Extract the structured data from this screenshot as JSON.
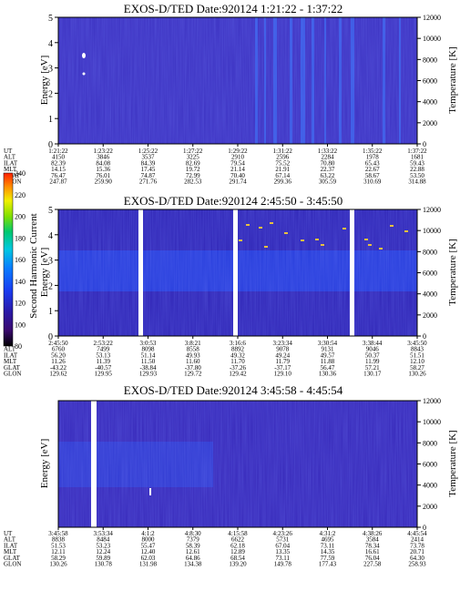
{
  "chart_data": [
    {
      "type": "heatmap",
      "title": "EXOS-D/TED   Date:920124   1:21:22 - 1:37:22",
      "ylabel": "Energy [eV]",
      "ylabel_right": "Temperature [K]",
      "ylim": [
        0,
        5
      ],
      "y_ticks": [
        "0",
        "1",
        "2",
        "3",
        "4",
        "5"
      ],
      "ylim_right": [
        0,
        12000
      ],
      "y_ticks_right": [
        "0",
        "2000",
        "4000",
        "6000",
        "8000",
        "10000",
        "12000"
      ],
      "ephemeris_labels": [
        "UT",
        "ALT",
        "ILAT",
        "MLT",
        "GLAT",
        "GLON"
      ],
      "ephemeris_columns": [
        [
          "1:21:22",
          "4150",
          "82.39",
          "14.15",
          "76.47",
          "247.87"
        ],
        [
          "1:23:22",
          "3846",
          "84.08",
          "15.36",
          "76.01",
          "259.90"
        ],
        [
          "1:25:22",
          "3537",
          "84.39",
          "17.45",
          "74.87",
          "271.76"
        ],
        [
          "1:27:22",
          "3225",
          "82.69",
          "19.72",
          "72.99",
          "282.53"
        ],
        [
          "1:29:22",
          "2910",
          "79.54",
          "21.14",
          "70.40",
          "291.74"
        ],
        [
          "1:31:22",
          "2596",
          "75.52",
          "21.91",
          "67.14",
          "299.36"
        ],
        [
          "1:33:22",
          "2284",
          "70.80",
          "22.37",
          "63.22",
          "305.59"
        ],
        [
          "1:35:22",
          "1978",
          "65.43",
          "22.67",
          "58.67",
          "310.69"
        ],
        [
          "1:37:22",
          "1681",
          "59.43",
          "22.88",
          "53.50",
          "314.88"
        ]
      ]
    },
    {
      "type": "heatmap",
      "title": "EXOS-D/TED   Date:920124   2:45:50 - 3:45:50",
      "ylabel": "Energy [eV]",
      "ylabel_right": "Temperature [K]",
      "ylim": [
        0,
        5
      ],
      "y_ticks": [
        "0",
        "1",
        "2",
        "3",
        "4",
        "5"
      ],
      "ylim_right": [
        0,
        12000
      ],
      "y_ticks_right": [
        "0",
        "2000",
        "4000",
        "6000",
        "8000",
        "10000",
        "12000"
      ],
      "ephemeris_labels": [
        "UT",
        "ALT",
        "ILAT",
        "MLT",
        "GLAT",
        "GLON"
      ],
      "ephemeris_columns": [
        [
          "2:45:50",
          "6760",
          "56.20",
          "11.26",
          "-43.22",
          "129.62"
        ],
        [
          "2:53:22",
          "7499",
          "53.13",
          "11.39",
          "-40.57",
          "129.95"
        ],
        [
          "3:0:53",
          "8098",
          "51.14",
          "11.50",
          "-38.84",
          "129.93"
        ],
        [
          "3:8:21",
          "8558",
          "49.93",
          "11.60",
          "-37.80",
          "129.72"
        ],
        [
          "3:16:6",
          "8892",
          "49.32",
          "11.70",
          "-37.26",
          "129.42"
        ],
        [
          "3:23:34",
          "9078",
          "49.24",
          "11.79",
          "-37.17",
          "129.10"
        ],
        [
          "3:30:54",
          "9131",
          "49.57",
          "11.88",
          "56.47",
          "130.36"
        ],
        [
          "3:38:44",
          "9046",
          "50.37",
          "11.99",
          "57.21",
          "130.17"
        ],
        [
          "3:45:50",
          "8843",
          "51.51",
          "12.10",
          "58.27",
          "130.26"
        ]
      ]
    },
    {
      "type": "heatmap",
      "title": "EXOS-D/TED   Date:920124   3:45:58 - 4:45:54",
      "ylabel": "Energy [eV]",
      "ylabel_right": "Temperature [K]",
      "ylim": [
        0,
        12000
      ],
      "y_ticks_right": [
        "0",
        "2000",
        "4000",
        "6000",
        "8000",
        "10000",
        "12000"
      ],
      "ephemeris_labels": [
        "UT",
        "ALT",
        "ILAT",
        "MLT",
        "GLAT",
        "GLON"
      ],
      "ephemeris_columns": [
        [
          "3:45:58",
          "8838",
          "51.53",
          "12.11",
          "58.29",
          "130.26"
        ],
        [
          "3:53:34",
          "8484",
          "53.23",
          "12.24",
          "59.89",
          "130.78"
        ],
        [
          "4:1:2",
          "8000",
          "55.47",
          "12.40",
          "62.03",
          "131.98"
        ],
        [
          "4:8:30",
          "7379",
          "58.39",
          "12.61",
          "64.86",
          "134.38"
        ],
        [
          "4:15:58",
          "6622",
          "62.18",
          "12.89",
          "68.54",
          "139.20"
        ],
        [
          "4:23:26",
          "5731",
          "67.04",
          "13.35",
          "73.11",
          "149.78"
        ],
        [
          "4:31:2",
          "4695",
          "73.11",
          "14.35",
          "77.59",
          "177.43"
        ],
        [
          "4:38:26",
          "3584",
          "78.34",
          "16.61",
          "76.04",
          "227.58"
        ],
        [
          "4:45:54",
          "2414",
          "73.78",
          "20.71",
          "64.30",
          "258.93"
        ]
      ]
    }
  ],
  "colorbar": {
    "label": "Second Harmonic Current",
    "ticks": [
      "80",
      "100",
      "120",
      "140",
      "160",
      "180",
      "200",
      "220",
      "240"
    ],
    "colors": [
      "#000000",
      "#3a0a6e",
      "#2a1aa8",
      "#1a3cf0",
      "#0a7cff",
      "#00c8e0",
      "#00c870",
      "#80e000",
      "#f0f000",
      "#ff9000",
      "#ff2000"
    ]
  }
}
